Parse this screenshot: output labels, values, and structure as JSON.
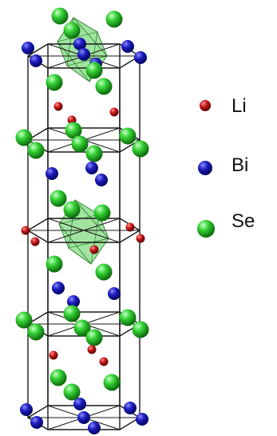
{
  "figure": {
    "legend": {
      "items": [
        {
          "label": "Li",
          "color": "#c1121f",
          "icon": "red-sphere-icon"
        },
        {
          "label": "Bi",
          "color": "#1d1db8",
          "icon": "blue-sphere-icon"
        },
        {
          "label": "Se",
          "color": "#32c832",
          "icon": "green-sphere-icon"
        }
      ]
    },
    "colors": {
      "frame": "#1a1a1a",
      "octahedron": "#5ccf5c",
      "background": "#ffffff"
    }
  }
}
